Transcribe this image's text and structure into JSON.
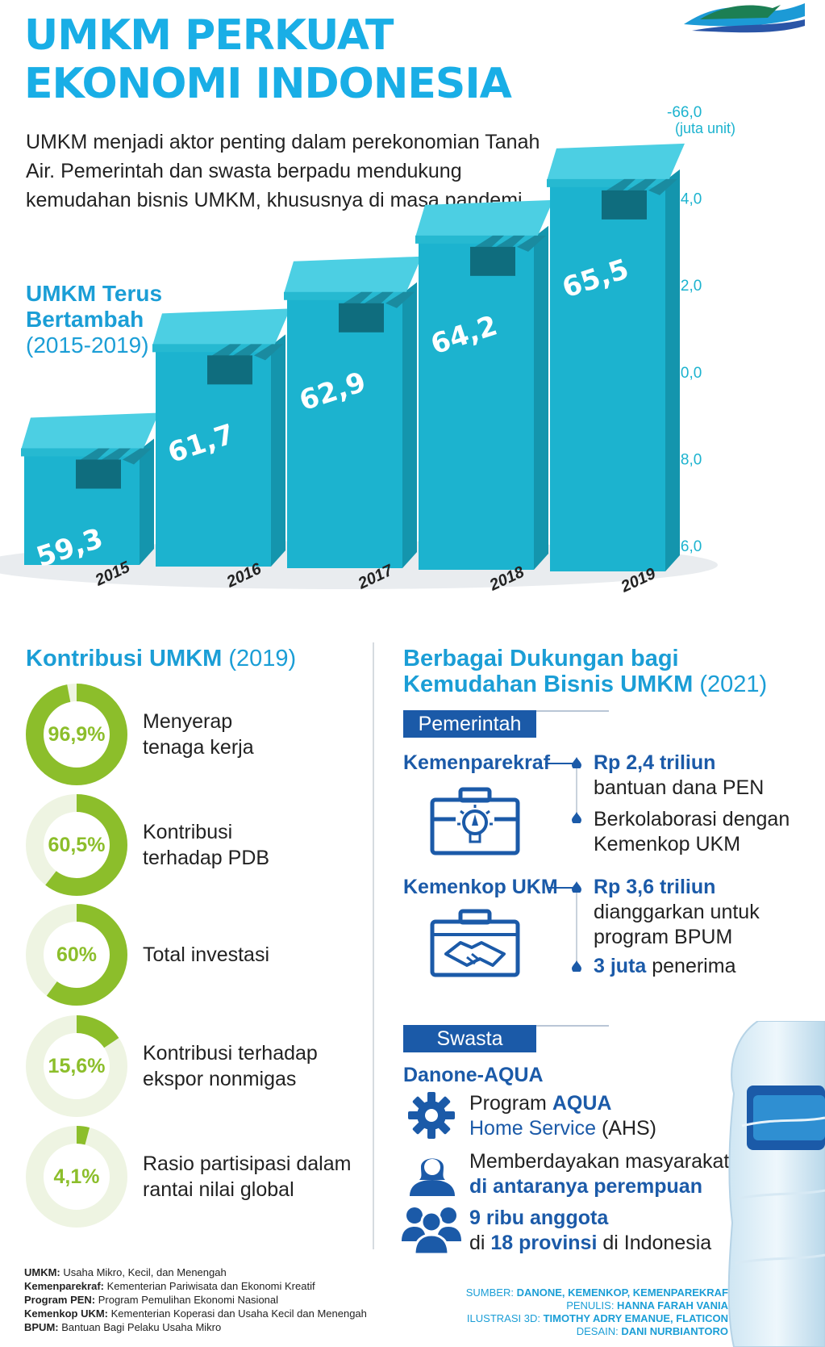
{
  "title": {
    "line1": "UMKM PERKUAT",
    "line2": "EKONOMI INDONESIA"
  },
  "intro": "UMKM menjadi aktor penting dalam perekonomian Tanah Air. Pemerintah dan swasta berpadu mendukung kemudahan bisnis UMKM, khususnya di masa pandemi.",
  "chart_section": {
    "title_bold_1": "UMKM Terus",
    "title_bold_2": "Bertambah",
    "title_range": "(2015-2019)"
  },
  "chart_data": {
    "type": "bar",
    "title": "UMKM Terus Bertambah (2015-2019)",
    "categories": [
      "2015",
      "2016",
      "2017",
      "2018",
      "2019"
    ],
    "values": [
      59.3,
      61.7,
      62.9,
      64.2,
      65.5
    ],
    "value_labels": [
      "59,3",
      "61,7",
      "62,9",
      "64,2",
      "65,5"
    ],
    "unit": "(juta unit)",
    "ylim": [
      56.0,
      66.0
    ],
    "yticks": [
      56.0,
      58.0,
      60.0,
      62.0,
      64.0,
      66.0
    ],
    "ytick_labels": [
      "-56,0",
      "-58,0",
      "-60,0",
      "-62,0",
      "-64,0",
      "-66,0"
    ],
    "axis_position": "right",
    "grid": false,
    "bar_color": "#1cb3cf"
  },
  "kontribusi": {
    "title_bold": "Kontribusi UMKM",
    "title_year": "(2019)",
    "items": [
      {
        "value": 96.9,
        "label": "96,9%",
        "text1": "Menyerap",
        "text2": "tenaga kerja"
      },
      {
        "value": 60.5,
        "label": "60,5%",
        "text1": "Kontribusi",
        "text2": "terhadap PDB"
      },
      {
        "value": 60,
        "label": "60%",
        "text1": "Total investasi",
        "text2": ""
      },
      {
        "value": 15.6,
        "label": "15,6%",
        "text1": "Kontribusi terhadap",
        "text2": "ekspor nonmigas"
      },
      {
        "value": 4.1,
        "label": "4,1%",
        "text1": "Rasio partisipasi dalam",
        "text2": "rantai nilai global"
      }
    ],
    "colors": {
      "fill": "#8cbe2b",
      "track": "#eef4e2"
    }
  },
  "dukungan": {
    "title_bold_1": "Berbagai Dukungan bagi",
    "title_bold_2": "Kemudahan Bisnis UMKM",
    "title_year": "(2021)",
    "pemerintah_tag": "Pemerintah",
    "kemenparekraf": {
      "name": "Kemenparekraf",
      "icon": "briefcase-lightbulb-icon",
      "amount": "Rp 2,4 triliun",
      "amount_desc": "bantuan dana PEN",
      "point2_line1": "Berkolaborasi dengan",
      "point2_line2": "Kemenkop UKM"
    },
    "kemenkop": {
      "name": "Kemenkop UKM",
      "icon": "briefcase-handshake-icon",
      "amount": "Rp 3,6 triliun",
      "amount_desc1": "dianggarkan untuk",
      "amount_desc2": "program BPUM",
      "recipients_bold": "3 juta",
      "recipients_rest": " penerima"
    },
    "swasta_tag": "Swasta",
    "swasta_org": "Danone-AQUA",
    "swasta_items": {
      "item1_a": "Program ",
      "item1_b": "AQUA",
      "item1_c": "Home Service",
      "item1_d": " (AHS)",
      "item2_a": "Memberdayakan masyarakat,",
      "item2_b": "di antaranya perempuan",
      "item3_a": "9 ribu anggota",
      "item3_b": "di ",
      "item3_c": "18 provinsi",
      "item3_d": " di Indonesia"
    },
    "colors": {
      "brand": "#1b5aa8"
    }
  },
  "footnotes": [
    {
      "term": "UMKM:",
      "desc": " Usaha Mikro, Kecil, dan Menengah"
    },
    {
      "term": "Kemenparekraf:",
      "desc": " Kementerian Pariwisata dan Ekonomi Kreatif"
    },
    {
      "term": "Program PEN:",
      "desc": " Program Pemulihan Ekonomi Nasional"
    },
    {
      "term": "Kemenkop UKM:",
      "desc": " Kementerian Koperasi dan Usaha Kecil dan Menengah"
    },
    {
      "term": "BPUM:",
      "desc": " Bantuan Bagi Pelaku Usaha Mikro"
    }
  ],
  "credits": [
    {
      "label": "SUMBER: ",
      "value": "DANONE, KEMENKOP, KEMENPAREKRAF"
    },
    {
      "label": "PENULIS: ",
      "value": "HANNA FARAH VANIA"
    },
    {
      "label": "ILUSTRASI 3D: ",
      "value": "TIMOTHY ADRY EMANUE, FLATICON"
    },
    {
      "label": "DESAIN: ",
      "value": "DANI NURBIANTORO"
    }
  ]
}
